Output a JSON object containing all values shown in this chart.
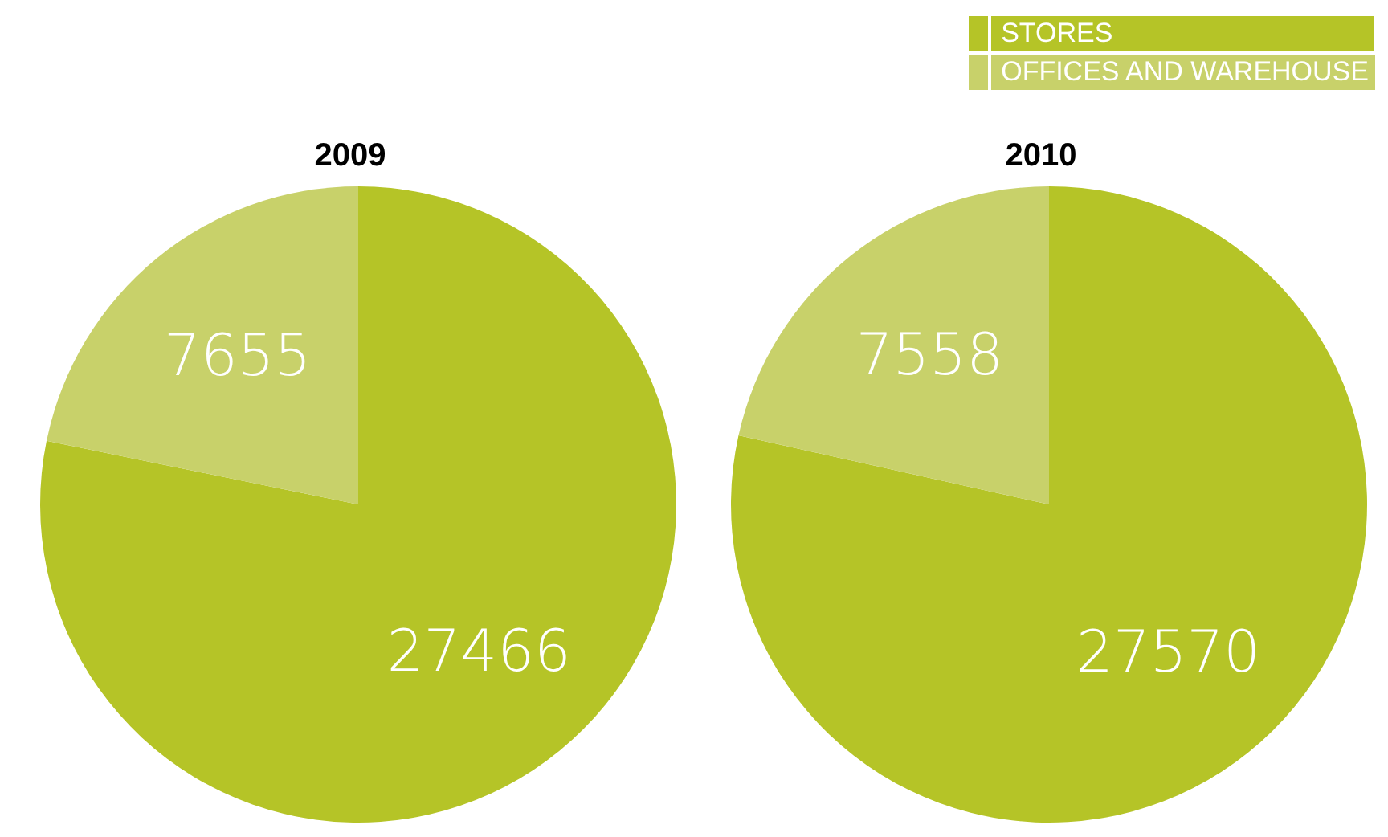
{
  "chart_data": [
    {
      "type": "pie",
      "title": "2009",
      "categories": [
        null,
        null
      ],
      "values": [
        27466,
        7655
      ],
      "colors": [
        "#b5c427",
        "#c8d16a"
      ],
      "data_labels": true,
      "legend": false
    },
    {
      "type": "pie",
      "title": "2010",
      "categories": [
        "STORES",
        "OFFICES AND WAREHOUSE"
      ],
      "values": [
        27570,
        7558
      ],
      "colors": [
        "#b5c427",
        "#c8d16a"
      ],
      "data_labels": true,
      "legend": "top right"
    }
  ]
}
